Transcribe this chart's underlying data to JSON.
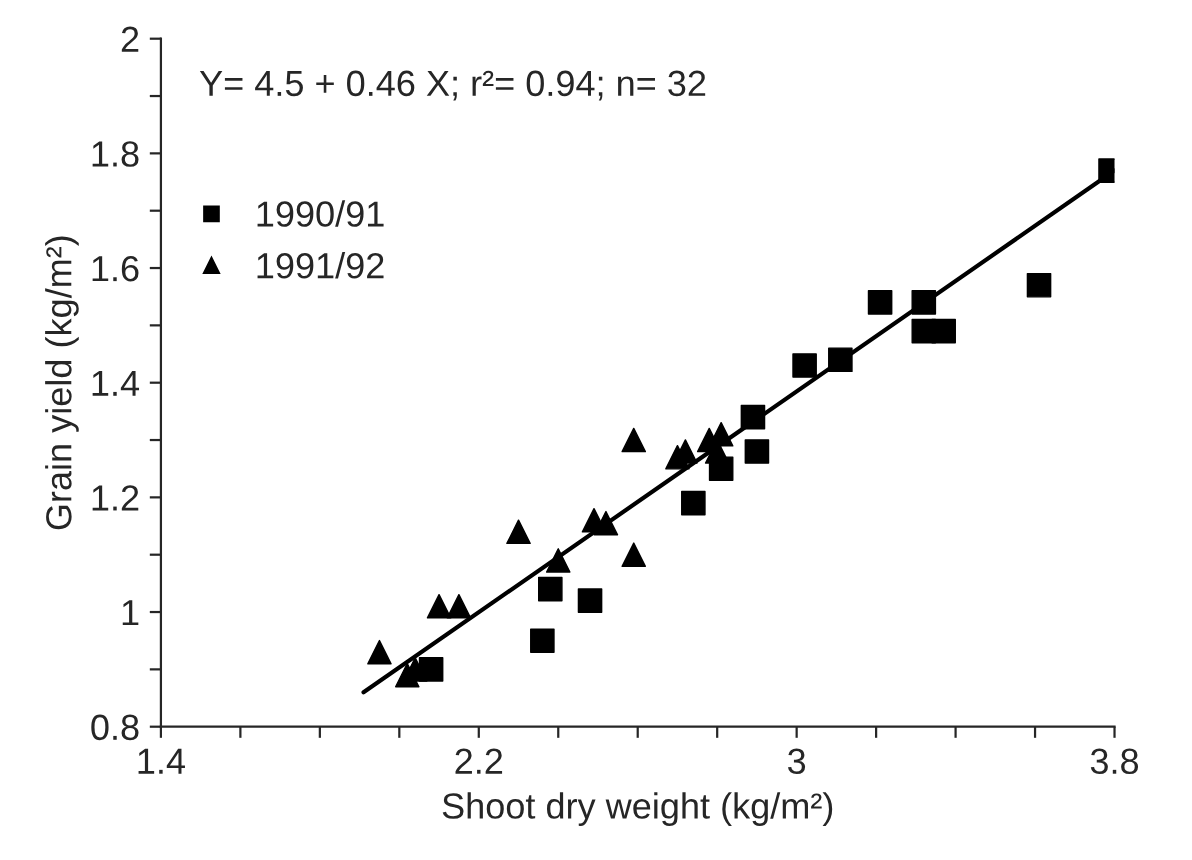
{
  "chart_data": {
    "type": "scatter",
    "xlabel": "Shoot dry weight (kg/m²)",
    "ylabel": "Grain yield (kg/m²)",
    "annotations": [
      "Y= 4.5 + 0.46 X; r²= 0.94; n= 32"
    ],
    "series": [
      {
        "name": "1990/91",
        "color": "#000000",
        "marker": "square",
        "x": [
          2.08,
          2.36,
          2.38,
          2.48,
          2.74,
          2.81,
          2.89,
          2.9,
          3.02,
          3.11,
          3.21,
          3.32,
          3.32,
          3.37,
          3.61,
          3.79
        ],
        "values": [
          0.9,
          0.95,
          1.04,
          1.02,
          1.19,
          1.25,
          1.34,
          1.28,
          1.43,
          1.44,
          1.54,
          1.54,
          1.49,
          1.49,
          1.57,
          1.77
        ]
      },
      {
        "name": "1991/92",
        "color": "#000000",
        "marker": "triangle",
        "x": [
          1.95,
          2.02,
          2.04,
          2.1,
          2.15,
          2.3,
          2.4,
          2.49,
          2.52,
          2.59,
          2.59,
          2.7,
          2.72,
          2.78,
          2.8,
          2.81
        ],
        "values": [
          0.93,
          0.89,
          0.9,
          1.01,
          1.01,
          1.14,
          1.09,
          1.16,
          1.155,
          1.1,
          1.3,
          1.27,
          1.28,
          1.3,
          1.28,
          1.31
        ]
      },
      {
        "type": "line",
        "color": "#000000",
        "x": [
          1.91,
          3.8
        ],
        "values": [
          0.86,
          1.77
        ]
      }
    ],
    "xlim": [
      1.4,
      3.8
    ],
    "ylim": [
      0.8,
      2
    ],
    "xticks": [
      1.4,
      {
        "value": 1.6,
        "label": null
      },
      {
        "value": 1.8,
        "label": null
      },
      {
        "value": 2.0,
        "label": null
      },
      2.2,
      {
        "value": 2.4,
        "label": null
      },
      {
        "value": 2.6,
        "label": null
      },
      {
        "value": 2.8,
        "label": null
      },
      3,
      {
        "value": 3.2,
        "label": null
      },
      {
        "value": 3.4,
        "label": null
      },
      {
        "value": 3.6,
        "label": null
      },
      3.8
    ],
    "yticks": [
      0.8,
      {
        "value": 0.9,
        "label": null
      },
      1,
      {
        "value": 1.1,
        "label": null
      },
      1.2,
      {
        "value": 1.3,
        "label": null
      },
      1.4,
      {
        "value": 1.5,
        "label": null
      },
      1.6,
      {
        "value": 1.7,
        "label": null
      },
      1.8,
      {
        "value": 1.9,
        "label": null
      },
      2
    ],
    "legend": "top left",
    "grid": false
  }
}
